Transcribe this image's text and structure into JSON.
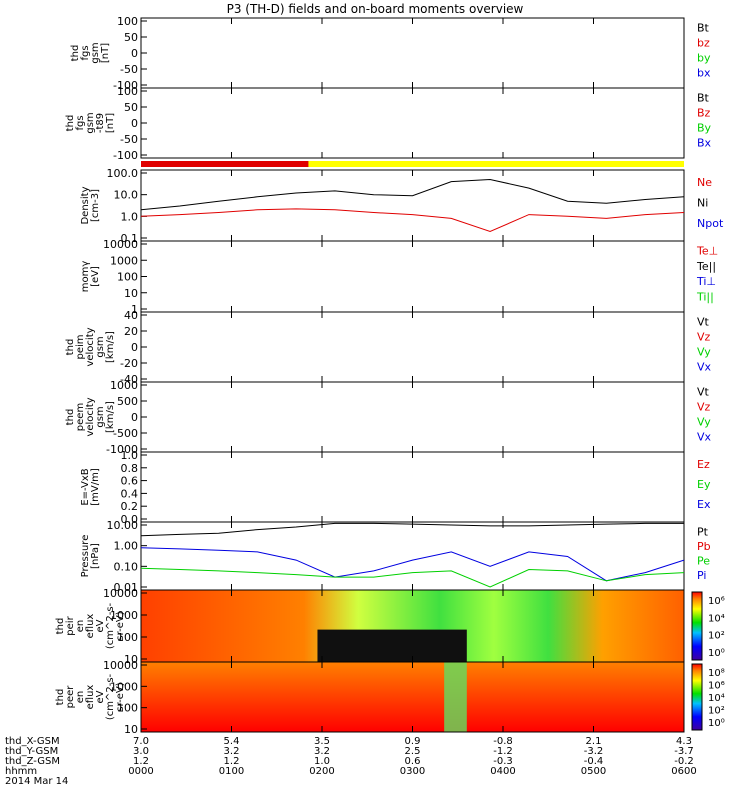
{
  "title": "P3 (TH-D) fields and on-board moments overview",
  "colors": {
    "black": "#000000",
    "red": "#e00000",
    "green": "#00d000",
    "blue": "#0000e0",
    "yellow": "#ffff00"
  },
  "chart_data": {
    "type": "line",
    "time_axis": {
      "ticks": [
        "0000",
        "0100",
        "0200",
        "0300",
        "0400",
        "0500",
        "0600"
      ],
      "row_labels": [
        "thd_X-GSM",
        "thd_Y-GSM",
        "thd_Z-GSM",
        "hhmm"
      ],
      "rows": [
        [
          "7.0",
          "5.4",
          "3.5",
          "0.9",
          "-0.8",
          "2.1",
          "4.3"
        ],
        [
          "3.0",
          "3.2",
          "3.2",
          "2.5",
          "-1.2",
          "-3.2",
          "-3.7"
        ],
        [
          "1.2",
          "1.2",
          "1.0",
          "0.6",
          "-0.3",
          "-0.4",
          "-0.2"
        ],
        [
          "0000",
          "0100",
          "0200",
          "0300",
          "0400",
          "0500",
          "0600"
        ]
      ],
      "date": "2014 Mar 14"
    },
    "panels": [
      {
        "id": "fgs",
        "ylabel": [
          "thd",
          "fgs",
          "gsm",
          "[nT]"
        ],
        "yticks": [
          "100",
          "50",
          "0",
          "-50",
          "-100"
        ],
        "legend": [
          {
            "name": "Bt",
            "color": "black"
          },
          {
            "name": "bz",
            "color": "red"
          },
          {
            "name": "by",
            "color": "green"
          },
          {
            "name": "bx",
            "color": "blue"
          }
        ]
      },
      {
        "id": "fgs_t89",
        "ylabel": [
          "thd",
          "fgs",
          "gsm",
          "-t89",
          "[nT]"
        ],
        "yticks": [
          "100",
          "50",
          "0",
          "-50",
          "-100"
        ],
        "legend": [
          {
            "name": "Bt",
            "color": "black"
          },
          {
            "name": "Bz",
            "color": "red"
          },
          {
            "name": "By",
            "color": "green"
          },
          {
            "name": "Bx",
            "color": "blue"
          }
        ]
      },
      {
        "id": "density",
        "ylabel": [
          "Density",
          "[cm-3]"
        ],
        "yticks": [
          "100.0",
          "10.0",
          "1.0",
          "0.1"
        ],
        "legend": [
          {
            "name": "Ne",
            "color": "red"
          },
          {
            "name": "Ni",
            "color": "black"
          },
          {
            "name": "Npot",
            "color": "blue"
          }
        ]
      },
      {
        "id": "temp",
        "ylabel": [
          "momγ",
          "[eV]"
        ],
        "yticks": [
          "10000",
          "1000",
          "100",
          "10",
          "1"
        ],
        "legend": [
          {
            "name": "Te⊥",
            "color": "red"
          },
          {
            "name": "Te||",
            "color": "black"
          },
          {
            "name": "Ti⊥",
            "color": "blue"
          },
          {
            "name": "Ti||",
            "color": "green"
          }
        ]
      },
      {
        "id": "ion_vel",
        "ylabel": [
          "thd",
          "peim",
          "velocity",
          "gsm",
          "[km/s]"
        ],
        "yticks": [
          "40",
          "20",
          "0",
          "-20",
          "-40"
        ],
        "legend": [
          {
            "name": "Vt",
            "color": "black"
          },
          {
            "name": "Vz",
            "color": "red"
          },
          {
            "name": "Vy",
            "color": "green"
          },
          {
            "name": "Vx",
            "color": "blue"
          }
        ]
      },
      {
        "id": "ele_vel",
        "ylabel": [
          "thd",
          "peem",
          "velocity",
          "gsm",
          "[km/s]"
        ],
        "yticks": [
          "1000",
          "500",
          "0",
          "-500",
          "-1000"
        ],
        "legend": [
          {
            "name": "Vt",
            "color": "black"
          },
          {
            "name": "Vz",
            "color": "red"
          },
          {
            "name": "Vy",
            "color": "green"
          },
          {
            "name": "Vx",
            "color": "blue"
          }
        ]
      },
      {
        "id": "efield",
        "ylabel": [
          "E=-VxB",
          "[mV/m]"
        ],
        "yticks": [
          "1.0",
          "0.8",
          "0.6",
          "0.4",
          "0.2",
          "0.0"
        ],
        "legend": [
          {
            "name": "Ez",
            "color": "red"
          },
          {
            "name": "Ey",
            "color": "green"
          },
          {
            "name": "Ex",
            "color": "blue"
          }
        ]
      },
      {
        "id": "pressure",
        "ylabel": [
          "Pressure",
          "[nPa]"
        ],
        "yticks": [
          "10.00",
          "1.00",
          "0.10",
          "0.01"
        ],
        "legend": [
          {
            "name": "Pt",
            "color": "black"
          },
          {
            "name": "Pb",
            "color": "red"
          },
          {
            "name": "Pe",
            "color": "green"
          },
          {
            "name": "Pi",
            "color": "blue"
          }
        ]
      },
      {
        "id": "ion_spec",
        "ylabel": [
          "thd",
          "peir",
          "en",
          "eflux",
          "eV",
          "(cm^2-s-",
          "sr-eV)"
        ],
        "yticks": [
          "10000",
          "1000",
          "100",
          "10"
        ],
        "cbar": [
          "10⁶",
          "10⁴",
          "10²",
          "10⁰"
        ]
      },
      {
        "id": "ele_spec",
        "ylabel": [
          "thd",
          "peer",
          "en",
          "eflux",
          "eV",
          "(cm^2-s-",
          "sr-eV)"
        ],
        "yticks": [
          "10000",
          "1000",
          "100",
          "10"
        ],
        "cbar": [
          "10⁸",
          "10⁶",
          "10⁴",
          "10²",
          "10⁰"
        ]
      }
    ],
    "series_profiles": {
      "Ni": [
        2,
        3,
        5,
        8,
        12,
        15,
        10,
        9,
        40,
        50,
        20,
        5,
        4,
        6,
        8
      ],
      "Ne": [
        1,
        1.2,
        1.5,
        2,
        2.2,
        2,
        1.5,
        1.2,
        0.8,
        0.2,
        1.2,
        1,
        0.8,
        1.2,
        1.5
      ],
      "Pi": [
        0.8,
        0.7,
        0.6,
        0.5,
        0.2,
        0.03,
        0.06,
        0.2,
        0.5,
        0.1,
        0.5,
        0.3,
        0.02,
        0.05,
        0.2
      ],
      "Pe": [
        0.08,
        0.07,
        0.06,
        0.05,
        0.04,
        0.03,
        0.03,
        0.05,
        0.06,
        0.01,
        0.07,
        0.06,
        0.02,
        0.04,
        0.05
      ],
      "Pt": [
        3,
        3.5,
        4,
        6,
        8,
        12,
        12,
        11,
        10,
        9,
        9,
        10,
        11,
        12,
        12
      ]
    },
    "xlim": [
      0,
      6
    ],
    "grid": false,
    "legend_position": "right"
  }
}
